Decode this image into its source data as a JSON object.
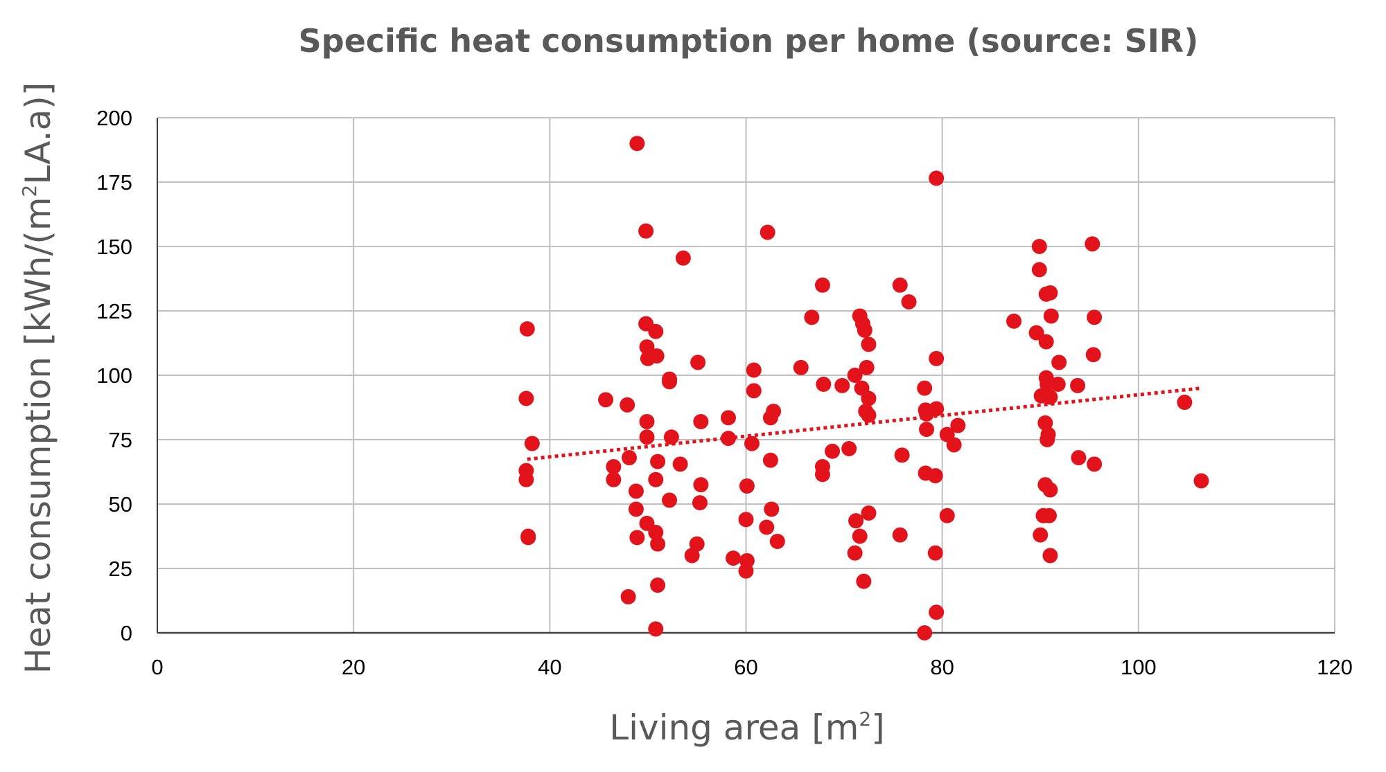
{
  "chart_data": {
    "type": "scatter",
    "title": "Specific heat consumption per home (source: SIR)",
    "xlabel": {
      "main": "Living area [m",
      "sup": "2",
      "end": "]"
    },
    "ylabel": {
      "main": "Heat consumption [kWh/(m",
      "sup": "2",
      "end": "LA.a)]"
    },
    "xlim": [
      0,
      120
    ],
    "ylim": [
      0,
      200
    ],
    "x_ticks": [
      "0",
      "20",
      "40",
      "60",
      "80",
      "100",
      "120"
    ],
    "y_ticks": [
      "0",
      "25",
      "50",
      "75",
      "100",
      "125",
      "150",
      "175",
      "200"
    ],
    "grid": true,
    "legend": "none",
    "colors": {
      "points": "#e3131b",
      "trendline": "#e3131b",
      "grid": "#bfbfbf",
      "axis": "#404040"
    },
    "trendline": {
      "style": "dotted",
      "linear": true,
      "start": [
        37.7,
        67.4
      ],
      "end": [
        106.4,
        95.0
      ]
    },
    "points": [
      [
        37.7,
        118
      ],
      [
        37.6,
        91
      ],
      [
        38.2,
        73.5
      ],
      [
        37.6,
        63
      ],
      [
        37.6,
        59.5
      ],
      [
        37.8,
        37.5
      ],
      [
        37.8,
        37
      ],
      [
        45.7,
        90.5
      ],
      [
        46.5,
        64.5
      ],
      [
        46.5,
        59.5
      ],
      [
        47.9,
        88.5
      ],
      [
        48.1,
        68
      ],
      [
        48.0,
        14
      ],
      [
        48.9,
        190
      ],
      [
        48.8,
        55
      ],
      [
        48.8,
        48
      ],
      [
        48.9,
        37
      ],
      [
        49.8,
        156
      ],
      [
        49.8,
        120
      ],
      [
        49.9,
        111
      ],
      [
        50.0,
        106.5
      ],
      [
        49.9,
        82
      ],
      [
        49.9,
        76
      ],
      [
        49.9,
        42.5
      ],
      [
        50.8,
        117
      ],
      [
        50.9,
        107.5
      ],
      [
        51.0,
        66.5
      ],
      [
        50.8,
        59.5
      ],
      [
        50.8,
        39
      ],
      [
        51.0,
        34.5
      ],
      [
        51.0,
        18.5
      ],
      [
        50.8,
        1.5
      ],
      [
        52.2,
        98.5
      ],
      [
        52.2,
        97.5
      ],
      [
        52.4,
        76
      ],
      [
        52.2,
        51.5
      ],
      [
        53.6,
        145.5
      ],
      [
        53.3,
        65.5
      ],
      [
        54.5,
        30
      ],
      [
        55.1,
        105
      ],
      [
        55.4,
        82
      ],
      [
        55.4,
        57.5
      ],
      [
        55.3,
        50.5
      ],
      [
        55.0,
        34.5
      ],
      [
        58.2,
        83.5
      ],
      [
        58.2,
        75.5
      ],
      [
        58.7,
        29
      ],
      [
        60.1,
        57
      ],
      [
        60.0,
        44
      ],
      [
        60.1,
        28
      ],
      [
        60.0,
        24
      ],
      [
        60.8,
        102
      ],
      [
        60.8,
        94
      ],
      [
        60.6,
        73.5
      ],
      [
        62.2,
        155.5
      ],
      [
        62.5,
        83.5
      ],
      [
        62.8,
        86
      ],
      [
        62.5,
        67
      ],
      [
        62.6,
        48
      ],
      [
        62.1,
        41
      ],
      [
        63.2,
        35.5
      ],
      [
        65.6,
        103
      ],
      [
        66.7,
        122.5
      ],
      [
        67.8,
        135
      ],
      [
        67.9,
        96.5
      ],
      [
        67.8,
        64.5
      ],
      [
        67.8,
        61.5
      ],
      [
        68.8,
        70.5
      ],
      [
        69.8,
        96
      ],
      [
        70.5,
        71.5
      ],
      [
        71.1,
        100
      ],
      [
        71.6,
        123
      ],
      [
        71.8,
        95
      ],
      [
        71.9,
        120
      ],
      [
        72.1,
        117.5
      ],
      [
        72.3,
        103
      ],
      [
        72.5,
        112
      ],
      [
        72.5,
        91
      ],
      [
        72.2,
        86
      ],
      [
        72.5,
        84.5
      ],
      [
        71.2,
        43.5
      ],
      [
        72.5,
        46.5
      ],
      [
        71.6,
        37.5
      ],
      [
        71.1,
        31
      ],
      [
        72.0,
        20
      ],
      [
        75.7,
        135
      ],
      [
        76.6,
        128.5
      ],
      [
        75.9,
        69
      ],
      [
        75.7,
        38
      ],
      [
        78.2,
        95
      ],
      [
        78.3,
        86.5
      ],
      [
        78.4,
        85
      ],
      [
        78.4,
        79
      ],
      [
        78.3,
        62
      ],
      [
        78.2,
        0
      ],
      [
        79.4,
        176.5
      ],
      [
        79.4,
        106.5
      ],
      [
        79.4,
        87
      ],
      [
        79.3,
        61
      ],
      [
        79.3,
        31
      ],
      [
        79.4,
        8
      ],
      [
        80.5,
        77
      ],
      [
        80.5,
        45.5
      ],
      [
        81.2,
        73
      ],
      [
        81.6,
        80.5
      ],
      [
        87.3,
        121
      ],
      [
        89.6,
        116.5
      ],
      [
        89.9,
        150
      ],
      [
        89.9,
        141
      ],
      [
        90.1,
        92
      ],
      [
        90.0,
        38
      ],
      [
        90.3,
        45.5
      ],
      [
        90.6,
        131.5
      ],
      [
        90.6,
        113
      ],
      [
        90.6,
        99
      ],
      [
        90.7,
        96.5
      ],
      [
        90.5,
        81.5
      ],
      [
        90.7,
        75
      ],
      [
        91.0,
        132
      ],
      [
        91.1,
        123
      ],
      [
        91.0,
        91.5
      ],
      [
        90.8,
        77
      ],
      [
        90.5,
        57.5
      ],
      [
        91.0,
        55.5
      ],
      [
        90.9,
        45.5
      ],
      [
        91.0,
        30
      ],
      [
        91.9,
        105
      ],
      [
        91.8,
        96.5
      ],
      [
        93.8,
        96
      ],
      [
        93.9,
        68
      ],
      [
        95.3,
        151
      ],
      [
        95.4,
        108
      ],
      [
        95.5,
        122.5
      ],
      [
        95.5,
        65.5
      ],
      [
        104.7,
        89.5
      ],
      [
        106.4,
        59
      ]
    ]
  }
}
